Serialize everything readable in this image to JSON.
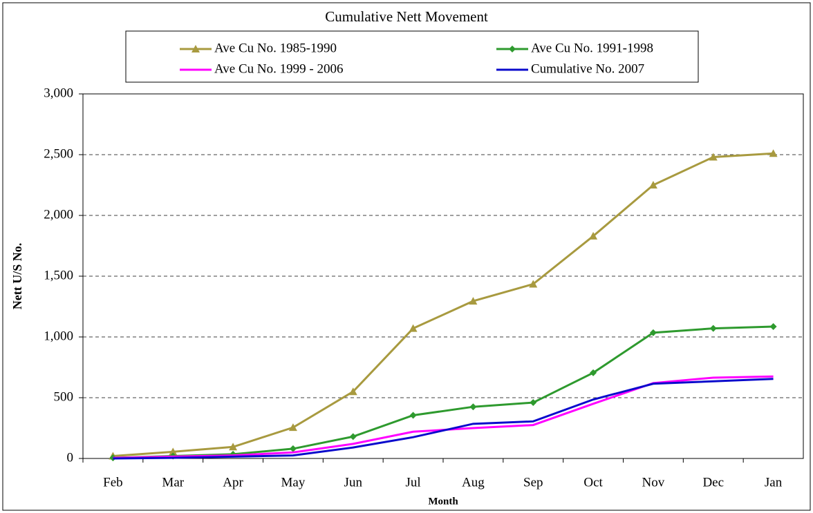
{
  "chart_data": {
    "type": "line",
    "title": "Cumulative Nett Movement",
    "x_label": "Month",
    "y_label": "Nett U/S No.",
    "categories": [
      "Feb",
      "Mar",
      "Apr",
      "May",
      "Jun",
      "Jul",
      "Aug",
      "Sep",
      "Oct",
      "Nov",
      "Dec",
      "Jan"
    ],
    "series": [
      {
        "name": "Ave Cu No. 1985-1990",
        "color": "#a89a3f",
        "marker": "triangle",
        "values": [
          20,
          55,
          95,
          255,
          550,
          1070,
          1295,
          1435,
          1830,
          2250,
          2480,
          2510
        ]
      },
      {
        "name": "Ave Cu No. 1991-1998",
        "color": "#2e9a2e",
        "marker": "diamond",
        "values": [
          5,
          20,
          35,
          80,
          180,
          355,
          425,
          460,
          705,
          1035,
          1070,
          1085
        ]
      },
      {
        "name": "Ave Cu No. 1999 - 2006",
        "color": "#ff00ff",
        "values": [
          5,
          15,
          25,
          50,
          120,
          220,
          250,
          275,
          450,
          620,
          665,
          675
        ]
      },
      {
        "name": "Cumulative No. 2007",
        "color": "#0a0acc",
        "values": [
          0,
          5,
          15,
          25,
          90,
          175,
          285,
          305,
          485,
          615,
          635,
          655
        ]
      }
    ],
    "ylim": [
      0,
      3000
    ],
    "yticks": [
      0,
      500,
      {
        "value": 1000,
        "label": "1,000"
      },
      {
        "value": 1500,
        "label": "1,500"
      },
      {
        "value": 2000,
        "label": "2,000"
      },
      {
        "value": 2500,
        "label": "2,500"
      },
      {
        "value": 3000,
        "label": "3,000"
      }
    ],
    "grid": true
  }
}
